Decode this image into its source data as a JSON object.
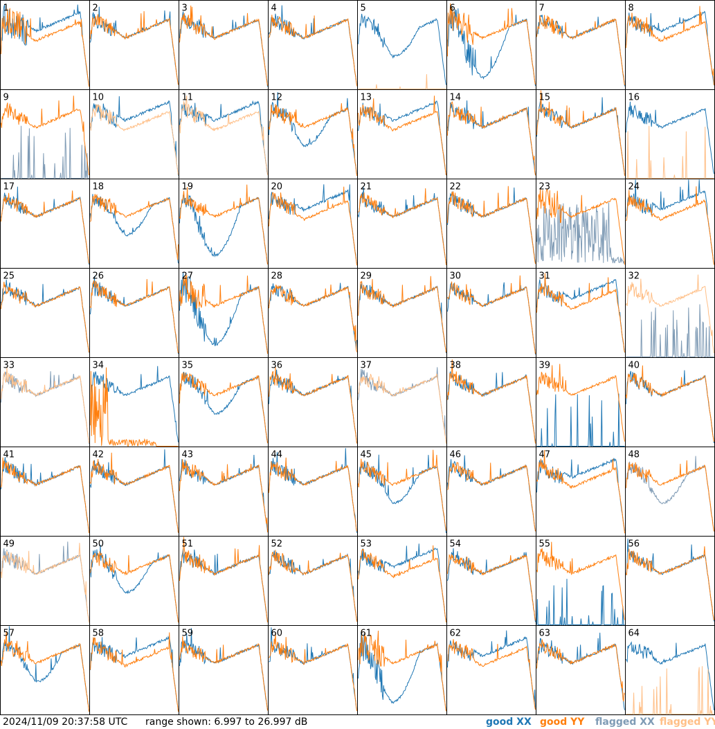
{
  "footer": {
    "timestamp": "2024/11/09 20:37:58 UTC",
    "range_text": "range shown: 6.997 to 26.997 dB"
  },
  "legend": {
    "good_xx": {
      "label": "good XX",
      "color": "#1f77b4"
    },
    "good_yy": {
      "label": "good YY",
      "color": "#ff7f0e"
    },
    "flagged_xx": {
      "label": "flagged XX",
      "color": "#7f9bb5"
    },
    "flagged_yy": {
      "label": "flagged YY",
      "color": "#ffbf87"
    }
  },
  "chart_data": {
    "type": "line",
    "layout": "8x8 small multiples, one panel per antenna input",
    "ylim": [
      6.997,
      26.997
    ],
    "yunits": "dB",
    "panels": [
      {
        "id": "1",
        "xx": "good",
        "yy": "good",
        "shape": "xx_higher",
        "noise": "high"
      },
      {
        "id": "2",
        "xx": "good",
        "yy": "good",
        "shape": "normal"
      },
      {
        "id": "3",
        "xx": "good",
        "yy": "good",
        "shape": "normal"
      },
      {
        "id": "4",
        "xx": "good",
        "yy": "good",
        "shape": "normal"
      },
      {
        "id": "5",
        "xx": "good",
        "yy": "flagged",
        "shape": "xx_dip",
        "yy_state": "low"
      },
      {
        "id": "6",
        "xx": "good",
        "yy": "good",
        "shape": "xx_deep_dip",
        "noise": "high"
      },
      {
        "id": "7",
        "xx": "good",
        "yy": "good",
        "shape": "normal"
      },
      {
        "id": "8",
        "xx": "good",
        "yy": "good",
        "shape": "xx_higher"
      },
      {
        "id": "9",
        "xx": "flagged",
        "yy": "good",
        "shape": "normal",
        "xx_state": "sparse"
      },
      {
        "id": "10",
        "xx": "good",
        "yy": "flagged",
        "shape": "xx_higher"
      },
      {
        "id": "11",
        "xx": "good",
        "yy": "flagged",
        "shape": "xx_higher"
      },
      {
        "id": "12",
        "xx": "good",
        "yy": "good",
        "shape": "xx_dip"
      },
      {
        "id": "13",
        "xx": "good",
        "yy": "good",
        "shape": "xx_higher"
      },
      {
        "id": "14",
        "xx": "good",
        "yy": "good",
        "shape": "normal"
      },
      {
        "id": "15",
        "xx": "good",
        "yy": "good",
        "shape": "normal"
      },
      {
        "id": "16",
        "xx": "good",
        "yy": "flagged",
        "shape": "normal",
        "yy_state": "sparse"
      },
      {
        "id": "17",
        "xx": "good",
        "yy": "good",
        "shape": "normal"
      },
      {
        "id": "18",
        "xx": "good",
        "yy": "good",
        "shape": "xx_dip"
      },
      {
        "id": "19",
        "xx": "good",
        "yy": "good",
        "shape": "xx_deep_dip"
      },
      {
        "id": "20",
        "xx": "good",
        "yy": "good",
        "shape": "xx_higher"
      },
      {
        "id": "21",
        "xx": "good",
        "yy": "good",
        "shape": "normal"
      },
      {
        "id": "22",
        "xx": "good",
        "yy": "good",
        "shape": "normal"
      },
      {
        "id": "23",
        "xx": "flagged",
        "yy": "good",
        "shape": "normal",
        "xx_state": "chaotic",
        "noise": "high"
      },
      {
        "id": "24",
        "xx": "good",
        "yy": "good",
        "shape": "xx_higher"
      },
      {
        "id": "25",
        "xx": "good",
        "yy": "good",
        "shape": "normal"
      },
      {
        "id": "26",
        "xx": "good",
        "yy": "good",
        "shape": "normal"
      },
      {
        "id": "27",
        "xx": "good",
        "yy": "good",
        "shape": "xx_deep_dip",
        "noise": "high"
      },
      {
        "id": "28",
        "xx": "good",
        "yy": "good",
        "shape": "normal"
      },
      {
        "id": "29",
        "xx": "good",
        "yy": "good",
        "shape": "normal"
      },
      {
        "id": "30",
        "xx": "good",
        "yy": "good",
        "shape": "normal"
      },
      {
        "id": "31",
        "xx": "good",
        "yy": "good",
        "shape": "xx_higher"
      },
      {
        "id": "32",
        "xx": "flagged",
        "yy": "flagged",
        "shape": "normal",
        "xx_state": "sparse"
      },
      {
        "id": "33",
        "xx": "flagged",
        "yy": "flagged",
        "shape": "normal"
      },
      {
        "id": "34",
        "xx": "good",
        "yy": "good",
        "shape": "normal",
        "yy_state": "collapsed"
      },
      {
        "id": "35",
        "xx": "good",
        "yy": "good",
        "shape": "xx_dip"
      },
      {
        "id": "36",
        "xx": "good",
        "yy": "good",
        "shape": "normal"
      },
      {
        "id": "37",
        "xx": "flagged",
        "yy": "flagged",
        "shape": "normal"
      },
      {
        "id": "38",
        "xx": "good",
        "yy": "good",
        "shape": "normal"
      },
      {
        "id": "39",
        "xx": "good",
        "yy": "good",
        "shape": "normal",
        "xx_state": "sparse"
      },
      {
        "id": "40",
        "xx": "good",
        "yy": "good",
        "shape": "normal"
      },
      {
        "id": "41",
        "xx": "good",
        "yy": "good",
        "shape": "normal"
      },
      {
        "id": "42",
        "xx": "good",
        "yy": "good",
        "shape": "normal"
      },
      {
        "id": "43",
        "xx": "good",
        "yy": "good",
        "shape": "normal"
      },
      {
        "id": "44",
        "xx": "good",
        "yy": "good",
        "shape": "normal"
      },
      {
        "id": "45",
        "xx": "good",
        "yy": "good",
        "shape": "xx_dip"
      },
      {
        "id": "46",
        "xx": "good",
        "yy": "good",
        "shape": "normal"
      },
      {
        "id": "47",
        "xx": "good",
        "yy": "good",
        "shape": "xx_higher"
      },
      {
        "id": "48",
        "xx": "flagged",
        "yy": "good",
        "shape": "xx_dip"
      },
      {
        "id": "49",
        "xx": "flagged",
        "yy": "flagged",
        "shape": "normal"
      },
      {
        "id": "50",
        "xx": "good",
        "yy": "good",
        "shape": "xx_dip"
      },
      {
        "id": "51",
        "xx": "good",
        "yy": "good",
        "shape": "normal"
      },
      {
        "id": "52",
        "xx": "good",
        "yy": "good",
        "shape": "normal"
      },
      {
        "id": "53",
        "xx": "good",
        "yy": "good",
        "shape": "xx_higher"
      },
      {
        "id": "54",
        "xx": "good",
        "yy": "good",
        "shape": "normal"
      },
      {
        "id": "55",
        "xx": "good",
        "yy": "good",
        "shape": "normal",
        "xx_state": "sparse"
      },
      {
        "id": "56",
        "xx": "good",
        "yy": "good",
        "shape": "normal"
      },
      {
        "id": "57",
        "xx": "good",
        "yy": "good",
        "shape": "xx_dip"
      },
      {
        "id": "58",
        "xx": "good",
        "yy": "good",
        "shape": "xx_higher"
      },
      {
        "id": "59",
        "xx": "good",
        "yy": "good",
        "shape": "normal"
      },
      {
        "id": "60",
        "xx": "good",
        "yy": "good",
        "shape": "normal"
      },
      {
        "id": "61",
        "xx": "good",
        "yy": "good",
        "shape": "xx_deep_dip",
        "noise": "high"
      },
      {
        "id": "62",
        "xx": "good",
        "yy": "good",
        "shape": "xx_higher"
      },
      {
        "id": "63",
        "xx": "good",
        "yy": "good",
        "shape": "normal"
      },
      {
        "id": "64",
        "xx": "good",
        "yy": "flagged",
        "shape": "normal",
        "yy_state": "sparse"
      }
    ]
  }
}
